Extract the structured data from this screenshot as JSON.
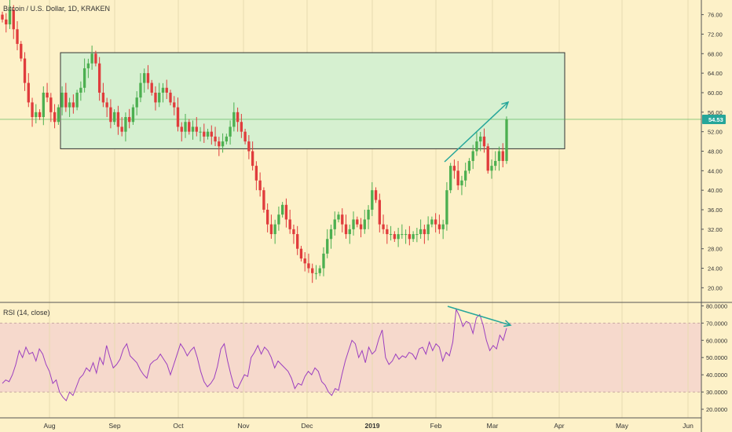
{
  "header": {
    "title": "Bitcoin / U.S. Dollar, 1D, KRAKEN"
  },
  "rsi_panel": {
    "title": "RSI (14, close)"
  },
  "price_label": {
    "value": "54.53"
  },
  "colors": {
    "bull": "#4caf50",
    "bear": "#e03c3c",
    "rsi_line": "#9c3fbf",
    "box_fill": "#d6f0d0",
    "rsi_band": "#f6d9cc",
    "arrow": "#26a69a",
    "price_tag": "#26a69a"
  },
  "chart_data": [
    {
      "type": "candlestick",
      "title": "Bitcoin / U.S. Dollar, 1D, KRAKEN",
      "x_ticks": [
        "Aug",
        "Sep",
        "Oct",
        "Nov",
        "Dec",
        "2019",
        "Feb",
        "Mar",
        "Apr",
        "May",
        "Jun"
      ],
      "y_ticks": [
        "20.00",
        "24.00",
        "28.00",
        "32.00",
        "36.00",
        "40.00",
        "44.00",
        "48.00",
        "52.00",
        "56.00",
        "60.00",
        "64.00",
        "68.00",
        "72.00",
        "76.00"
      ],
      "ylim": [
        17,
        79
      ],
      "last_price": 54.53,
      "range_box": {
        "low": 48.5,
        "high": 68.2
      },
      "series": [
        {
          "closes": [
            75,
            74,
            77,
            73,
            70,
            67,
            62,
            58,
            55,
            56,
            55,
            60,
            59,
            56,
            54,
            57,
            60,
            57,
            58,
            57,
            60,
            61,
            65,
            66,
            68,
            66,
            60,
            58,
            57,
            54,
            56,
            53,
            52,
            55,
            54,
            57,
            59,
            62,
            64,
            62,
            60,
            58,
            60,
            61,
            60,
            58,
            57,
            53,
            52,
            54,
            52,
            53,
            52,
            52,
            51,
            52,
            51,
            50,
            49,
            50,
            51,
            53,
            56,
            54,
            52,
            50,
            48,
            45,
            42,
            40,
            36,
            33,
            31,
            33,
            35,
            37,
            34,
            32,
            31,
            28,
            26,
            25,
            24,
            23,
            23,
            24,
            27,
            30,
            32,
            34,
            35,
            33,
            31,
            32,
            34,
            33,
            32,
            34,
            36,
            40,
            38,
            33,
            32,
            31,
            31,
            30,
            31,
            31,
            31,
            30,
            31,
            31,
            32,
            31,
            33,
            34,
            33,
            32,
            33,
            40,
            45,
            44,
            41,
            42,
            44,
            46,
            48,
            50,
            51,
            49,
            44,
            45,
            46,
            48,
            46,
            54.53
          ]
        }
      ]
    },
    {
      "type": "line",
      "title": "RSI (14, close)",
      "ylim": [
        15,
        82
      ],
      "y_ticks": [
        "20.0000",
        "30.0000",
        "40.0000",
        "50.0000",
        "60.0000",
        "70.0000",
        "80.0000"
      ],
      "bands": [
        30,
        70
      ],
      "series": [
        {
          "name": "RSI",
          "values": [
            35,
            37,
            36,
            40,
            46,
            54,
            50,
            56,
            52,
            53,
            48,
            55,
            52,
            46,
            42,
            35,
            37,
            30,
            27,
            25,
            30,
            28,
            33,
            38,
            40,
            44,
            42,
            47,
            41,
            50,
            46,
            57,
            50,
            44,
            46,
            49,
            55,
            58,
            51,
            49,
            47,
            43,
            40,
            38,
            46,
            48,
            49,
            52,
            49,
            46,
            40,
            46,
            52,
            58,
            55,
            51,
            54,
            56,
            50,
            42,
            36,
            33,
            35,
            38,
            45,
            55,
            58,
            48,
            40,
            33,
            32,
            36,
            40,
            39,
            50,
            53,
            57,
            52,
            56,
            54,
            50,
            44,
            48,
            46,
            44,
            42,
            38,
            32,
            35,
            34,
            39,
            42,
            40,
            44,
            42,
            36,
            34,
            30,
            28,
            32,
            31,
            40,
            48,
            54,
            60,
            58,
            50,
            54,
            47,
            56,
            52,
            54,
            61,
            66,
            50,
            46,
            48,
            52,
            49,
            51,
            50,
            53,
            52,
            49,
            55,
            56,
            52,
            59,
            54,
            58,
            56,
            48,
            53,
            51,
            59,
            78,
            74,
            68,
            71,
            70,
            64,
            73,
            75,
            69,
            60,
            54,
            57,
            55,
            63,
            60,
            67
          ]
        }
      ]
    }
  ]
}
